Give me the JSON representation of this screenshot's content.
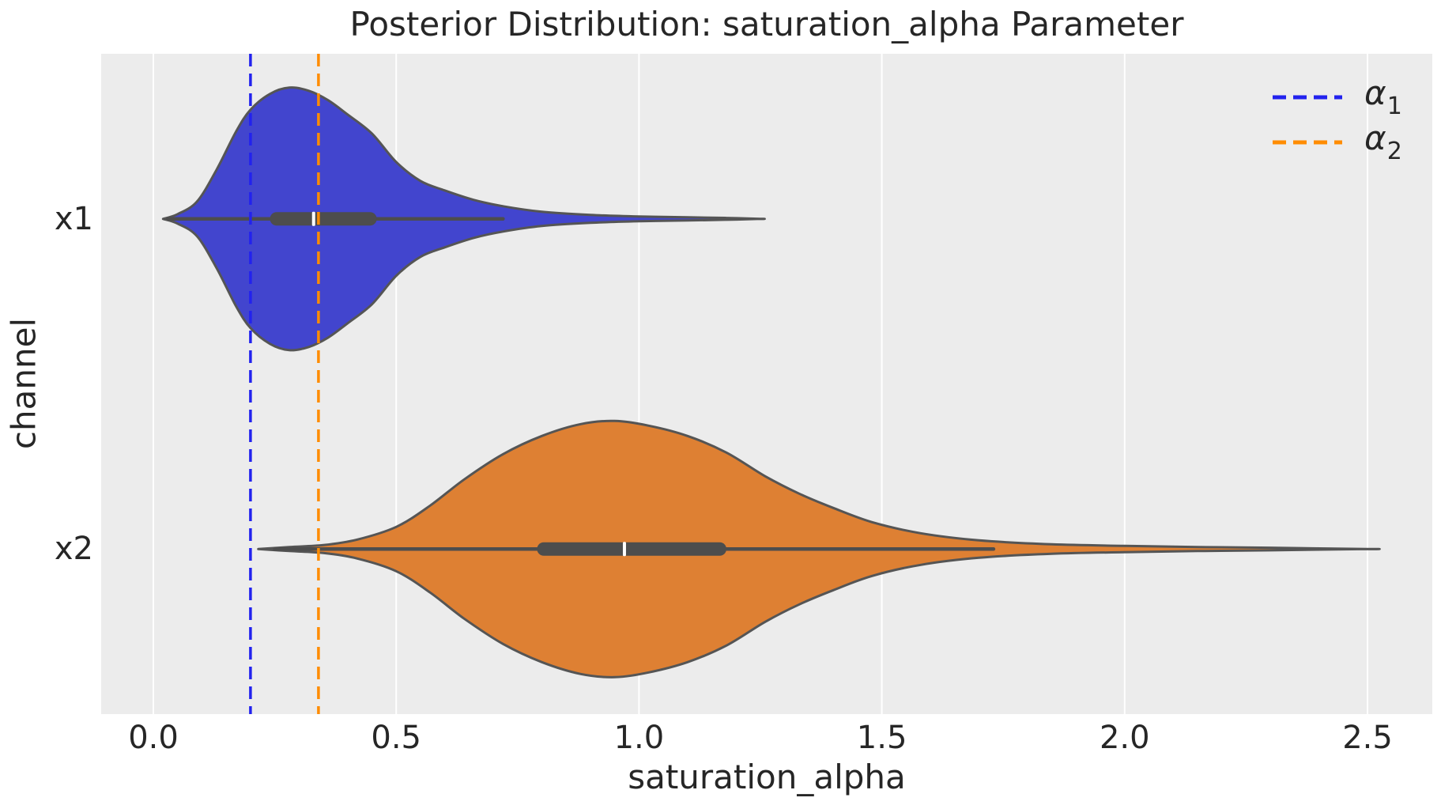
{
  "title": "Posterior Distribution: saturation_alpha Parameter",
  "x_axis": {
    "label": "saturation_alpha",
    "ticks": [
      {
        "label": "0.0",
        "value": 0.0
      },
      {
        "label": "0.5",
        "value": 0.5
      },
      {
        "label": "1.0",
        "value": 1.0
      },
      {
        "label": "1.5",
        "value": 1.5
      },
      {
        "label": "2.0",
        "value": 2.0
      },
      {
        "label": "2.5",
        "value": 2.5
      }
    ]
  },
  "y_axis": {
    "label": "channel",
    "categories": [
      {
        "label": "x1"
      },
      {
        "label": "x2"
      }
    ]
  },
  "legend": {
    "items": [
      {
        "symbol": "α",
        "sub": "1",
        "color": "#2222ee"
      },
      {
        "symbol": "α",
        "sub": "2",
        "color": "#ff8c00"
      }
    ]
  },
  "colors": {
    "figure_bg": "#ffffff",
    "plot_bg": "#ececec",
    "grid": "#ffffff",
    "violin_edge": "#555555",
    "box": "#4d4d4d",
    "median_tick": "#ffffff",
    "text": "#262626",
    "x1_fill": "#4245ce",
    "x2_fill": "#de8033",
    "alpha1_line": "#2222ee",
    "alpha2_line": "#ff8c00"
  },
  "chart_data": {
    "type": "violin",
    "orientation": "horizontal",
    "title": "Posterior Distribution: saturation_alpha Parameter",
    "xlabel": "saturation_alpha",
    "ylabel": "channel",
    "categories": [
      "x1",
      "x2"
    ],
    "xlim": [
      -0.11,
      2.63
    ],
    "grid": true,
    "legend_position": "upper right",
    "x_ticks": [
      0.0,
      0.5,
      1.0,
      1.5,
      2.0,
      2.5
    ],
    "reference_lines": [
      {
        "name": "alpha_1",
        "value": 0.2,
        "color": "#2222ee",
        "style": "dashed"
      },
      {
        "name": "alpha_2",
        "value": 0.34,
        "color": "#ff8c00",
        "style": "dashed"
      }
    ],
    "series": [
      {
        "name": "x1",
        "fill": "#4245ce",
        "median": 0.33,
        "q1": 0.24,
        "q3": 0.46,
        "whisker_low": 0.03,
        "whisker_high": 0.72,
        "kde_min": 0.02,
        "kde_max": 1.25,
        "kde_peak": 0.28,
        "profile": [
          [
            0.02,
            0
          ],
          [
            0.05,
            6
          ],
          [
            0.09,
            22
          ],
          [
            0.13,
            62
          ],
          [
            0.17,
            110
          ],
          [
            0.2,
            138
          ],
          [
            0.24,
            158
          ],
          [
            0.28,
            166
          ],
          [
            0.32,
            162
          ],
          [
            0.36,
            150
          ],
          [
            0.4,
            132
          ],
          [
            0.45,
            108
          ],
          [
            0.5,
            72
          ],
          [
            0.55,
            48
          ],
          [
            0.6,
            36
          ],
          [
            0.66,
            24
          ],
          [
            0.72,
            16
          ],
          [
            0.8,
            9
          ],
          [
            0.9,
            5
          ],
          [
            1.0,
            3
          ],
          [
            1.1,
            2
          ],
          [
            1.18,
            1.2
          ],
          [
            1.25,
            0
          ]
        ]
      },
      {
        "name": "x2",
        "fill": "#de8033",
        "median": 0.97,
        "q1": 0.79,
        "q3": 1.18,
        "whisker_low": 0.25,
        "whisker_high": 1.73,
        "kde_min": 0.22,
        "kde_max": 2.5,
        "kde_peak": 0.95,
        "profile": [
          [
            0.216,
            0
          ],
          [
            0.28,
            2.5
          ],
          [
            0.35,
            5
          ],
          [
            0.42,
            12
          ],
          [
            0.5,
            28
          ],
          [
            0.57,
            55
          ],
          [
            0.64,
            88
          ],
          [
            0.72,
            120
          ],
          [
            0.8,
            143
          ],
          [
            0.88,
            158
          ],
          [
            0.95,
            162
          ],
          [
            1.02,
            156
          ],
          [
            1.1,
            143
          ],
          [
            1.18,
            122
          ],
          [
            1.26,
            92
          ],
          [
            1.33,
            70
          ],
          [
            1.4,
            52
          ],
          [
            1.48,
            34
          ],
          [
            1.58,
            20
          ],
          [
            1.7,
            11
          ],
          [
            1.85,
            6
          ],
          [
            2.0,
            4
          ],
          [
            2.15,
            2.5
          ],
          [
            2.3,
            1.6
          ],
          [
            2.5,
            0
          ]
        ]
      }
    ]
  }
}
